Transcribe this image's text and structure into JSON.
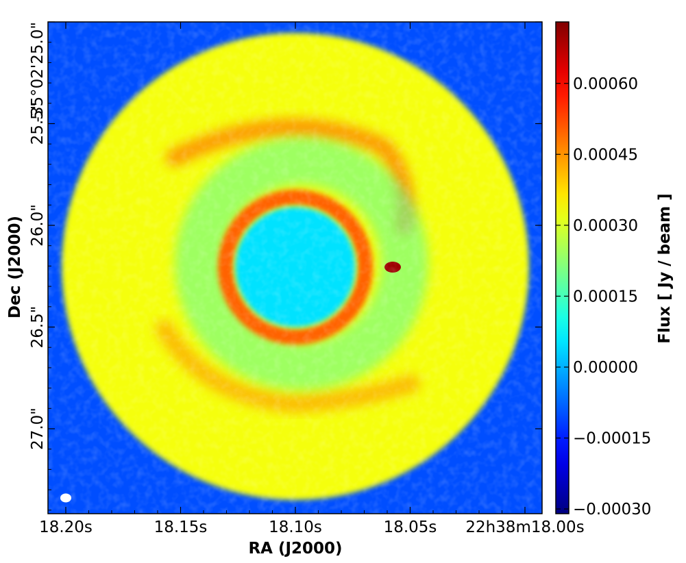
{
  "chart_data": {
    "type": "heatmap",
    "title": "",
    "xlabel": "RA (J2000)",
    "ylabel": "Dec (J2000)",
    "colorbar_label": "Flux [ Jy / beam ]",
    "colormap": "jet",
    "x_tick_labels": [
      "18.20s",
      "18.15s",
      "18.10s",
      "18.05s",
      "22h38m18.00s"
    ],
    "y_tick_labels": [
      "-35°02'25.0\"",
      "25.5\"",
      "26.0\"",
      "26.5\"",
      "27.0\""
    ],
    "colorbar_ticks": [
      "0.00060",
      "0.00045",
      "0.00030",
      "0.00015",
      "0.00000",
      "−0.00015",
      "−0.00030"
    ],
    "colorbar_tick_values": [
      0.0006,
      0.00045,
      0.0003,
      0.00015,
      0.0,
      -0.00015,
      -0.0003
    ],
    "color_range": [
      -0.00031,
      0.00073
    ],
    "features": {
      "outer_disk_flux": 0.00033,
      "ring_flux": 0.00045,
      "inner_gap_flux": 5e-05,
      "background_flux": -0.0001,
      "compact_source_flux": 0.0007
    },
    "beam": "white ellipse, lower-left corner"
  }
}
